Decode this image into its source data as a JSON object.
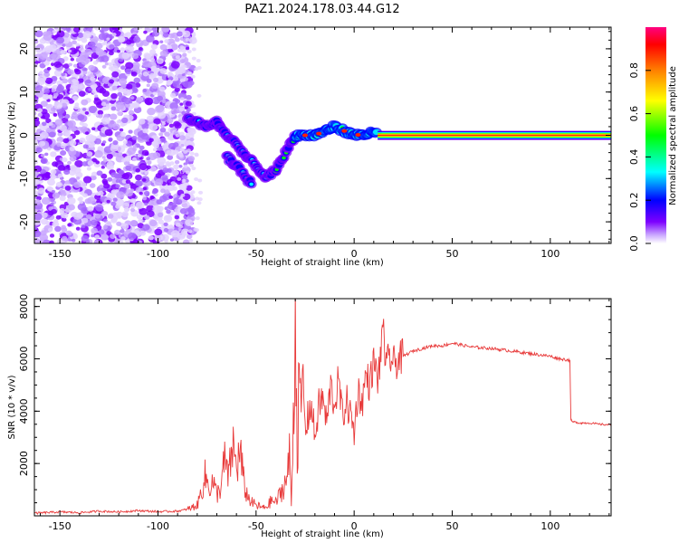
{
  "title": "PAZ1.2024.178.03.44.G12",
  "chart_data": [
    {
      "type": "heatmap",
      "xlabel": "Height of straight line (km)",
      "ylabel": "Frequency (Hz)",
      "xlim": [
        -163,
        131
      ],
      "ylim": [
        -25,
        25
      ],
      "xticks": [
        -150,
        -100,
        -50,
        0,
        50,
        100
      ],
      "yticks": [
        20,
        10,
        0,
        -10,
        -20
      ],
      "grid": false,
      "colorbar": {
        "label": "Normalized spectral amplitude",
        "range": [
          0,
          1
        ],
        "ticks": [
          0.0,
          0.2,
          0.4,
          0.6,
          0.8
        ],
        "colors": [
          "#ffffff",
          "#c9a6ff",
          "#7d00ff",
          "#0000ff",
          "#00ffff",
          "#00ff00",
          "#ffff00",
          "#ff8000",
          "#ff0000",
          "#ff0080"
        ]
      },
      "tone_track": [
        {
          "x": -85,
          "y": 4
        },
        {
          "x": -80,
          "y": 3
        },
        {
          "x": -75,
          "y": 2
        },
        {
          "x": -70,
          "y": 3
        },
        {
          "x": -65,
          "y": 0
        },
        {
          "x": -60,
          "y": -2
        },
        {
          "x": -55,
          "y": -5
        },
        {
          "x": -50,
          "y": -7
        },
        {
          "x": -45,
          "y": -10
        },
        {
          "x": -40,
          "y": -8
        },
        {
          "x": -35,
          "y": -4
        },
        {
          "x": -30,
          "y": 0
        },
        {
          "x": -20,
          "y": 0
        },
        {
          "x": -10,
          "y": 2
        },
        {
          "x": 0,
          "y": 0
        },
        {
          "x": 10,
          "y": 0.5
        },
        {
          "x": 131,
          "y": 0
        }
      ]
    },
    {
      "type": "line",
      "xlabel": "Height of straight line (km)",
      "ylabel": "SNR (10 * v/v)",
      "xlim": [
        -163,
        131
      ],
      "ylim": [
        0,
        8300
      ],
      "xticks": [
        -150,
        -100,
        -50,
        0,
        50,
        100
      ],
      "yticks": [
        2000,
        4000,
        6000,
        8000
      ],
      "grid": false,
      "series": [
        {
          "color": "#e83a3a",
          "x": [
            -163,
            -150,
            -140,
            -130,
            -120,
            -110,
            -100,
            -90,
            -85,
            -80,
            -78,
            -76,
            -74,
            -72,
            -70,
            -68,
            -66,
            -64,
            -62,
            -60,
            -58,
            -56,
            -54,
            -52,
            -50,
            -48,
            -46,
            -44,
            -42,
            -40,
            -38,
            -36,
            -34,
            -33,
            -32,
            -31,
            -30,
            -29,
            -28,
            -27,
            -26,
            -25,
            -24,
            -22,
            -20,
            -18,
            -16,
            -14,
            -12,
            -10,
            -8,
            -6,
            -4,
            -2,
            0,
            2,
            4,
            6,
            8,
            10,
            12,
            14,
            15,
            16,
            18,
            20,
            25,
            30,
            35,
            40,
            45,
            50,
            60,
            70,
            80,
            90,
            100,
            105,
            110,
            110.5,
            111,
            115,
            120,
            125,
            131
          ],
          "y": [
            100,
            150,
            120,
            180,
            150,
            200,
            160,
            180,
            250,
            400,
            900,
            1500,
            1100,
            1300,
            800,
            1100,
            2100,
            1400,
            2700,
            1900,
            2400,
            1100,
            700,
            500,
            400,
            350,
            300,
            400,
            600,
            500,
            800,
            1100,
            1500,
            2300,
            500,
            3600,
            8200,
            2300,
            5300,
            4200,
            5500,
            3200,
            3600,
            4300,
            3000,
            4200,
            4500,
            3500,
            5000,
            4200,
            5200,
            3800,
            4400,
            3900,
            3200,
            4800,
            4300,
            5400,
            5000,
            5900,
            5200,
            6400,
            7700,
            5500,
            6100,
            5800,
            6100,
            6300,
            6400,
            6500,
            6500,
            6600,
            6450,
            6400,
            6300,
            6200,
            6100,
            6000,
            5950,
            3700,
            3600,
            3550,
            3550,
            3500,
            3480
          ]
        }
      ]
    }
  ]
}
